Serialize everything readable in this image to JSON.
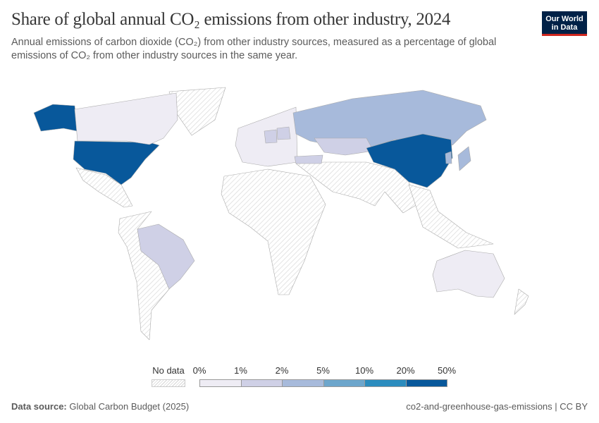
{
  "header": {
    "title": "Share of global annual CO₂ emissions from other industry, 2024",
    "subtitle": "Annual emissions of carbon dioxide (CO₂) from other industry sources, measured as a percentage of global emissions of CO₂ from other industry sources in the same year.",
    "logo_line1": "Our World",
    "logo_line2": "in Data"
  },
  "legend": {
    "no_data_label": "No data",
    "ticks": [
      "0%",
      "1%",
      "2%",
      "5%",
      "10%",
      "20%",
      "50%"
    ],
    "colors": [
      "#eeecf4",
      "#cfd0e6",
      "#a7badb",
      "#6da6cc",
      "#2b8cbe",
      "#08589b"
    ],
    "no_data_color": "#e6e6e6"
  },
  "map": {
    "regions": [
      {
        "id": "united-states",
        "bin": 5
      },
      {
        "id": "china",
        "bin": 5
      },
      {
        "id": "russia",
        "bin": 2
      },
      {
        "id": "japan",
        "bin": 2
      },
      {
        "id": "south-korea",
        "bin": 2
      },
      {
        "id": "germany",
        "bin": 1
      },
      {
        "id": "poland",
        "bin": 1
      },
      {
        "id": "turkey",
        "bin": 1
      },
      {
        "id": "kazakhstan",
        "bin": 1
      },
      {
        "id": "brazil",
        "bin": 1
      },
      {
        "id": "canada",
        "bin": 0
      },
      {
        "id": "europe-other",
        "bin": 0
      },
      {
        "id": "australia",
        "bin": 0
      }
    ]
  },
  "footer": {
    "source_label": "Data source:",
    "source": "Global Carbon Budget (2025)",
    "slug": "co2-and-greenhouse-gas-emissions | CC BY"
  }
}
